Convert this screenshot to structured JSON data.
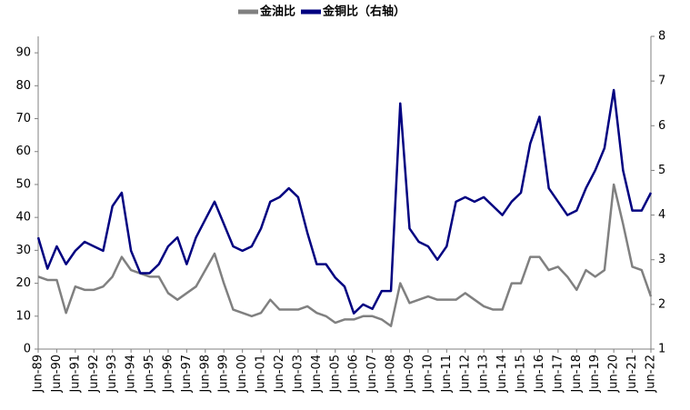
{
  "chart_data": {
    "type": "line",
    "categories": [
      "Jun-89",
      null,
      "Jun-90",
      null,
      "Jun-91",
      null,
      "Jun-92",
      null,
      "Jun-93",
      null,
      "Jun-94",
      null,
      "Jun-95",
      null,
      "Jun-96",
      null,
      "Jun-97",
      null,
      "Jun-98",
      null,
      "Jun-99",
      null,
      "Jun-00",
      null,
      "Jun-01",
      null,
      "Jun-02",
      null,
      "Jun-03",
      null,
      "Jun-04",
      null,
      "Jun-05",
      null,
      "Jun-06",
      null,
      "Jun-07",
      null,
      "Jun-08",
      null,
      "Jun-09",
      null,
      "Jun-10",
      null,
      "Jun-11",
      null,
      "Jun-12",
      null,
      "Jun-13",
      null,
      "Jun-14",
      null,
      "Jun-15",
      null,
      "Jun-16",
      null,
      "Jun-17",
      null,
      "Jun-18",
      null,
      "Jun-19",
      null,
      "Jun-20",
      null,
      "Jun-21",
      null,
      "Jun-22"
    ],
    "series": [
      {
        "name": "金油比",
        "color": "#808080",
        "values": [
          22,
          21,
          21,
          11,
          19,
          18,
          18,
          19,
          22,
          28,
          24,
          23,
          22,
          22,
          17,
          15,
          17,
          19,
          24,
          29,
          20,
          12,
          11,
          10,
          11,
          15,
          12,
          12,
          12,
          13,
          11,
          10,
          8,
          9,
          9,
          10,
          10,
          9,
          7,
          20,
          14,
          15,
          16,
          15,
          15,
          15,
          17,
          15,
          13,
          12,
          12,
          20,
          20,
          28,
          28,
          24,
          25,
          22,
          18,
          24,
          22,
          24,
          50,
          38,
          25,
          24,
          16
        ]
      },
      {
        "name": "金铜比（右轴）",
        "color": "#000080",
        "axis": "y2",
        "values": [
          3.5,
          2.8,
          3.3,
          2.9,
          3.2,
          3.4,
          3.3,
          3.2,
          4.2,
          4.5,
          3.2,
          2.7,
          2.7,
          2.9,
          3.3,
          3.5,
          2.9,
          3.5,
          3.9,
          4.3,
          3.8,
          3.3,
          3.2,
          3.3,
          3.7,
          4.3,
          4.4,
          4.6,
          4.4,
          3.6,
          2.9,
          2.9,
          2.6,
          2.4,
          1.8,
          2.0,
          1.9,
          2.3,
          2.3,
          6.5,
          3.7,
          3.4,
          3.3,
          3.0,
          3.3,
          4.3,
          4.4,
          4.3,
          4.4,
          4.2,
          4.0,
          4.3,
          4.5,
          5.6,
          6.2,
          4.6,
          4.3,
          4.0,
          4.1,
          4.6,
          5.0,
          5.5,
          6.8,
          5.0,
          4.1,
          4.1,
          4.5
        ]
      }
    ],
    "ylim": [
      0,
      95
    ],
    "yticks": [
      0,
      10,
      20,
      30,
      40,
      50,
      60,
      70,
      80,
      90
    ],
    "y2lim": [
      1,
      8
    ],
    "y2ticks": [
      1,
      2,
      3,
      4,
      5,
      6,
      7,
      8
    ],
    "legend": "top"
  }
}
